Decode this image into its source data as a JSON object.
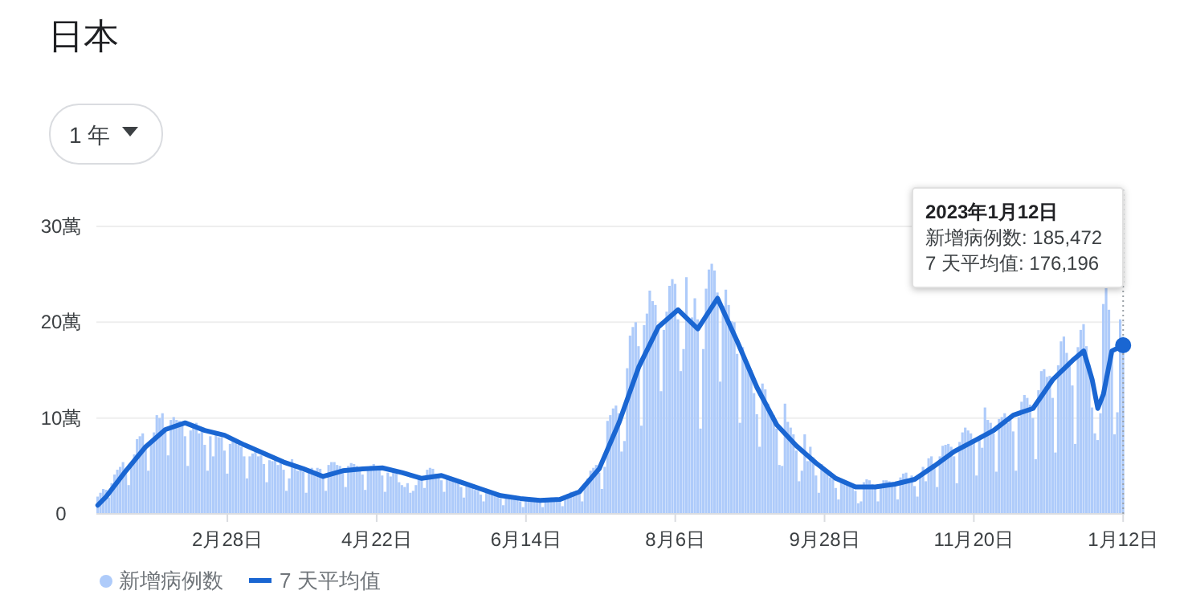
{
  "chart_data": {
    "type": "bar",
    "title": "日本",
    "annotations": [
      "1 年",
      "2023年1月12日",
      "新增病例数: 185,472",
      "7 天平均值: 176,196"
    ],
    "x": [
      "2022-01-13",
      "2022-01-14",
      "2022-01-15",
      "2022-01-16",
      "2022-01-17",
      "2022-01-18",
      "2022-01-19",
      "2022-01-20",
      "2022-01-21",
      "2022-01-22",
      "2022-01-23",
      "2022-01-24",
      "2022-01-25",
      "2022-01-26",
      "2022-01-27",
      "2022-01-28",
      "2022-01-29",
      "2022-01-30",
      "2022-01-31",
      "2022-02-01",
      "2022-02-02",
      "2022-02-03",
      "2022-02-04",
      "2022-02-05",
      "2022-02-06",
      "2022-02-07",
      "2022-02-08",
      "2022-02-09",
      "2022-02-10",
      "2022-02-11",
      "2022-02-12",
      "2022-02-13",
      "2022-02-14",
      "2022-02-15",
      "2022-02-16",
      "2022-02-17",
      "2022-02-18",
      "2022-02-19",
      "2022-02-20",
      "2022-02-21",
      "2022-02-22",
      "2022-02-23",
      "2022-02-24",
      "2022-02-25",
      "2022-02-26",
      "2022-02-27",
      "2022-02-28",
      "2022-03-01",
      "2022-03-02",
      "2022-03-03",
      "2022-03-04",
      "2022-03-05",
      "2022-03-06",
      "2022-03-07",
      "2022-03-08",
      "2022-03-09",
      "2022-03-10",
      "2022-03-11",
      "2022-03-12",
      "2022-03-13",
      "2022-03-14",
      "2022-03-15",
      "2022-03-16",
      "2022-03-17",
      "2022-03-18",
      "2022-03-19",
      "2022-03-20",
      "2022-03-21",
      "2022-03-22",
      "2022-03-23",
      "2022-03-24",
      "2022-03-25",
      "2022-03-26",
      "2022-03-27",
      "2022-03-28",
      "2022-03-29",
      "2022-03-30",
      "2022-03-31",
      "2022-04-01",
      "2022-04-02",
      "2022-04-03",
      "2022-04-04",
      "2022-04-05",
      "2022-04-06",
      "2022-04-07",
      "2022-04-08",
      "2022-04-09",
      "2022-04-10",
      "2022-04-11",
      "2022-04-12",
      "2022-04-13",
      "2022-04-14",
      "2022-04-15",
      "2022-04-16",
      "2022-04-17",
      "2022-04-18",
      "2022-04-19",
      "2022-04-20",
      "2022-04-21",
      "2022-04-22",
      "2022-04-23",
      "2022-04-24",
      "2022-04-25",
      "2022-04-26",
      "2022-04-27",
      "2022-04-28",
      "2022-04-29",
      "2022-04-30",
      "2022-05-01",
      "2022-05-02",
      "2022-05-03",
      "2022-05-04",
      "2022-05-05",
      "2022-05-06",
      "2022-05-07",
      "2022-05-08",
      "2022-05-09",
      "2022-05-10",
      "2022-05-11",
      "2022-05-12",
      "2022-05-13",
      "2022-05-14",
      "2022-05-15",
      "2022-05-16",
      "2022-05-17",
      "2022-05-18",
      "2022-05-19",
      "2022-05-20",
      "2022-05-21",
      "2022-05-22",
      "2022-05-23",
      "2022-05-24",
      "2022-05-25",
      "2022-05-26",
      "2022-05-27",
      "2022-05-28",
      "2022-05-29",
      "2022-05-30",
      "2022-05-31",
      "2022-06-01",
      "2022-06-02",
      "2022-06-03",
      "2022-06-04",
      "2022-06-05",
      "2022-06-06",
      "2022-06-07",
      "2022-06-08",
      "2022-06-09",
      "2022-06-10",
      "2022-06-11",
      "2022-06-12",
      "2022-06-13",
      "2022-06-14",
      "2022-06-15",
      "2022-06-16",
      "2022-06-17",
      "2022-06-18",
      "2022-06-19",
      "2022-06-20",
      "2022-06-21",
      "2022-06-22",
      "2022-06-23",
      "2022-06-24",
      "2022-06-25",
      "2022-06-26",
      "2022-06-27",
      "2022-06-28",
      "2022-06-29",
      "2022-06-30",
      "2022-07-01",
      "2022-07-02",
      "2022-07-03",
      "2022-07-04",
      "2022-07-05",
      "2022-07-06",
      "2022-07-07",
      "2022-07-08",
      "2022-07-09",
      "2022-07-10",
      "2022-07-11",
      "2022-07-12",
      "2022-07-13",
      "2022-07-14",
      "2022-07-15",
      "2022-07-16",
      "2022-07-17",
      "2022-07-18",
      "2022-07-19",
      "2022-07-20",
      "2022-07-21",
      "2022-07-22",
      "2022-07-23",
      "2022-07-24",
      "2022-07-25",
      "2022-07-26",
      "2022-07-27",
      "2022-07-28",
      "2022-07-29",
      "2022-07-30",
      "2022-07-31",
      "2022-08-01",
      "2022-08-02",
      "2022-08-03",
      "2022-08-04",
      "2022-08-05",
      "2022-08-06",
      "2022-08-07",
      "2022-08-08",
      "2022-08-09",
      "2022-08-10",
      "2022-08-11",
      "2022-08-12",
      "2022-08-13",
      "2022-08-14",
      "2022-08-15",
      "2022-08-16",
      "2022-08-17",
      "2022-08-18",
      "2022-08-19",
      "2022-08-20",
      "2022-08-21",
      "2022-08-22",
      "2022-08-23",
      "2022-08-24",
      "2022-08-25",
      "2022-08-26",
      "2022-08-27",
      "2022-08-28",
      "2022-08-29",
      "2022-08-30",
      "2022-08-31",
      "2022-09-01",
      "2022-09-02",
      "2022-09-03",
      "2022-09-04",
      "2022-09-05",
      "2022-09-06",
      "2022-09-07",
      "2022-09-08",
      "2022-09-09",
      "2022-09-10",
      "2022-09-11",
      "2022-09-12",
      "2022-09-13",
      "2022-09-14",
      "2022-09-15",
      "2022-09-16",
      "2022-09-17",
      "2022-09-18",
      "2022-09-19",
      "2022-09-20",
      "2022-09-21",
      "2022-09-22",
      "2022-09-23",
      "2022-09-24",
      "2022-09-25",
      "2022-09-26",
      "2022-09-27",
      "2022-09-28",
      "2022-09-29",
      "2022-09-30",
      "2022-10-01",
      "2022-10-02",
      "2022-10-03",
      "2022-10-04",
      "2022-10-05",
      "2022-10-06",
      "2022-10-07",
      "2022-10-08",
      "2022-10-09",
      "2022-10-10",
      "2022-10-11",
      "2022-10-12",
      "2022-10-13",
      "2022-10-14",
      "2022-10-15",
      "2022-10-16",
      "2022-10-17",
      "2022-10-18",
      "2022-10-19",
      "2022-10-20",
      "2022-10-21",
      "2022-10-22",
      "2022-10-23",
      "2022-10-24",
      "2022-10-25",
      "2022-10-26",
      "2022-10-27",
      "2022-10-28",
      "2022-10-29",
      "2022-10-30",
      "2022-10-31",
      "2022-11-01",
      "2022-11-02",
      "2022-11-03",
      "2022-11-04",
      "2022-11-05",
      "2022-11-06",
      "2022-11-07",
      "2022-11-08",
      "2022-11-09",
      "2022-11-10",
      "2022-11-11",
      "2022-11-12",
      "2022-11-13",
      "2022-11-14",
      "2022-11-15",
      "2022-11-16",
      "2022-11-17",
      "2022-11-18",
      "2022-11-19",
      "2022-11-20",
      "2022-11-21",
      "2022-11-22",
      "2022-11-23",
      "2022-11-24",
      "2022-11-25",
      "2022-11-26",
      "2022-11-27",
      "2022-11-28",
      "2022-11-29",
      "2022-11-30",
      "2022-12-01",
      "2022-12-02",
      "2022-12-03",
      "2022-12-04",
      "2022-12-05",
      "2022-12-06",
      "2022-12-07",
      "2022-12-08",
      "2022-12-09",
      "2022-12-10",
      "2022-12-11",
      "2022-12-12",
      "2022-12-13",
      "2022-12-14",
      "2022-12-15",
      "2022-12-16",
      "2022-12-17",
      "2022-12-18",
      "2022-12-19",
      "2022-12-20",
      "2022-12-21",
      "2022-12-22",
      "2022-12-23",
      "2022-12-24",
      "2022-12-25",
      "2022-12-26",
      "2022-12-27",
      "2022-12-28",
      "2022-12-29",
      "2022-12-30",
      "2022-12-31",
      "2023-01-01",
      "2023-01-02",
      "2023-01-03",
      "2023-01-04",
      "2023-01-05",
      "2023-01-06",
      "2023-01-07",
      "2023-01-08",
      "2023-01-09",
      "2023-01-10",
      "2023-01-11",
      "2023-01-12"
    ],
    "series": [
      {
        "name": "新增病例数",
        "color": "#aecbfa",
        "values": [
          1.8,
          2.2,
          2.6,
          2.5,
          1.7,
          3.2,
          4.1,
          4.6,
          4.9,
          5.4,
          4.7,
          3.0,
          5.0,
          6.2,
          7.8,
          8.1,
          8.4,
          7.1,
          4.5,
          7.4,
          8.5,
          10.3,
          10.0,
          10.5,
          8.8,
          6.1,
          9.8,
          10.1,
          9.8,
          9.7,
          9.5,
          8.1,
          5.0,
          8.7,
          9.3,
          9.5,
          8.4,
          8.9,
          7.2,
          4.5,
          8.1,
          6.0,
          8.4,
          8.0,
          8.0,
          6.6,
          4.2,
          7.3,
          7.8,
          7.6,
          7.2,
          7.0,
          6.0,
          3.7,
          6.0,
          6.3,
          6.5,
          6.0,
          6.1,
          5.2,
          3.3,
          5.6,
          5.5,
          5.6,
          5.1,
          5.4,
          4.6,
          2.4,
          3.7,
          5.7,
          4.8,
          4.5,
          4.8,
          4.4,
          2.2,
          4.6,
          4.8,
          4.5,
          4.8,
          4.7,
          4.1,
          2.4,
          5.1,
          5.4,
          5.4,
          5.1,
          5.0,
          4.4,
          2.8,
          5.0,
          5.3,
          5.2,
          5.0,
          4.7,
          4.1,
          2.5,
          4.8,
          5.0,
          5.2,
          4.8,
          4.6,
          4.0,
          2.3,
          4.3,
          3.9,
          4.4,
          4.2,
          3.3,
          3.0,
          2.8,
          3.2,
          2.2,
          2.4,
          3.0,
          3.9,
          3.6,
          2.7,
          4.6,
          4.8,
          4.7,
          4.2,
          4.0,
          3.5,
          2.3,
          3.8,
          3.7,
          3.6,
          3.4,
          3.2,
          2.8,
          1.7,
          3.0,
          2.9,
          2.7,
          2.5,
          2.4,
          2.0,
          1.3,
          2.4,
          2.3,
          2.1,
          2.0,
          1.9,
          1.6,
          0.9,
          1.9,
          1.8,
          1.8,
          1.6,
          1.6,
          1.3,
          0.7,
          1.6,
          1.6,
          1.6,
          1.5,
          1.5,
          1.3,
          0.7,
          1.4,
          1.5,
          1.7,
          1.6,
          1.7,
          1.5,
          0.8,
          1.8,
          2.1,
          2.3,
          2.3,
          2.4,
          2.1,
          1.3,
          2.8,
          3.7,
          4.5,
          4.8,
          5.1,
          4.3,
          2.6,
          4.9,
          9.7,
          10.3,
          11.0,
          11.3,
          10.5,
          6.5,
          7.6,
          15.2,
          18.6,
          19.5,
          20.0,
          17.5,
          9.2,
          19.7,
          20.9,
          23.3,
          22.2,
          21.8,
          19.4,
          12.8,
          19.2,
          21.1,
          23.8,
          24.5,
          24.0,
          20.3,
          14.9,
          17.2,
          24.7,
          20.0,
          20.5,
          22.5,
          20.3,
          8.9,
          17.2,
          23.5,
          25.5,
          26.1,
          25.4,
          23.1,
          13.8,
          21.7,
          23.4,
          21.8,
          20.1,
          20.0,
          16.7,
          9.5,
          17.4,
          15.7,
          15.6,
          15.0,
          12.6,
          10.4,
          7.0,
          13.6,
          13.0,
          11.5,
          10.5,
          10.3,
          8.9,
          5.1,
          5.0,
          11.5,
          9.6,
          9.0,
          8.3,
          6.6,
          3.4,
          4.5,
          8.3,
          5.5,
          7.0,
          5.9,
          4.0,
          2.2,
          5.2,
          4.7,
          4.4,
          3.8,
          3.6,
          2.7,
          1.5,
          3.4,
          3.4,
          3.2,
          3.1,
          2.9,
          2.4,
          1.1,
          1.3,
          3.3,
          3.6,
          3.5,
          3.1,
          2.6,
          1.3,
          3.0,
          3.5,
          3.5,
          3.4,
          3.2,
          2.9,
          1.5,
          3.8,
          4.2,
          4.3,
          3.5,
          4.0,
          2.9,
          1.8,
          3.9,
          4.9,
          3.4,
          5.8,
          6.0,
          4.8,
          2.8,
          6.0,
          7.1,
          7.2,
          7.3,
          7.0,
          6.0,
          3.2,
          7.5,
          8.5,
          9.0,
          8.7,
          8.4,
          7.5,
          4.0,
          7.9,
          6.9,
          11.1,
          9.8,
          9.5,
          8.4,
          4.4,
          9.9,
          10.1,
          10.5,
          9.5,
          9.8,
          8.6,
          4.5,
          10.1,
          11.7,
          12.4,
          12.1,
          11.4,
          10.0,
          5.7,
          12.9,
          14.9,
          15.1,
          14.3,
          14.4,
          12.1,
          6.4,
          15.5,
          18.0,
          18.5,
          16.8,
          15.8,
          13.4,
          7.3,
          17.4,
          19.2,
          19.8,
          17.5,
          15.6,
          11.1,
          8.4,
          7.7,
          10.5,
          21.9,
          23.6,
          21.3,
          17.0,
          8.3,
          10.6,
          20.3,
          18.5
        ]
      },
      {
        "name": "7 天平均值",
        "type": "line",
        "color": "#1a66d2",
        "x": [
          "2022-01-13",
          "2022-01-16",
          "2022-01-23",
          "2022-01-30",
          "2022-02-06",
          "2022-02-13",
          "2022-02-20",
          "2022-02-27",
          "2022-03-06",
          "2022-03-13",
          "2022-03-20",
          "2022-03-27",
          "2022-04-03",
          "2022-04-10",
          "2022-04-17",
          "2022-04-24",
          "2022-05-01",
          "2022-05-08",
          "2022-05-15",
          "2022-05-22",
          "2022-05-29",
          "2022-06-05",
          "2022-06-12",
          "2022-06-19",
          "2022-06-26",
          "2022-07-03",
          "2022-07-10",
          "2022-07-17",
          "2022-07-24",
          "2022-07-31",
          "2022-08-07",
          "2022-08-14",
          "2022-08-21",
          "2022-08-28",
          "2022-09-04",
          "2022-09-11",
          "2022-09-18",
          "2022-09-25",
          "2022-10-02",
          "2022-10-09",
          "2022-10-16",
          "2022-10-23",
          "2022-10-30",
          "2022-11-06",
          "2022-11-13",
          "2022-11-20",
          "2022-11-27",
          "2022-12-04",
          "2022-12-11",
          "2022-12-18",
          "2022-12-25",
          "2022-12-29",
          "2023-01-01",
          "2023-01-03",
          "2023-01-05",
          "2023-01-08",
          "2023-01-10",
          "2023-01-12"
        ],
        "values": [
          0.9,
          1.8,
          4.5,
          7.0,
          8.8,
          9.5,
          8.7,
          8.2,
          7.2,
          6.3,
          5.4,
          4.7,
          3.9,
          4.5,
          4.7,
          4.8,
          4.3,
          3.7,
          4.0,
          3.3,
          2.6,
          1.9,
          1.6,
          1.4,
          1.5,
          2.3,
          4.7,
          9.5,
          15.3,
          19.5,
          21.3,
          19.3,
          22.5,
          18.0,
          13.2,
          9.3,
          7.1,
          5.3,
          3.7,
          2.8,
          2.8,
          3.1,
          3.6,
          5.0,
          6.5,
          7.6,
          8.7,
          10.3,
          11.0,
          14.0,
          16.0,
          17.0,
          14.0,
          11.0,
          12.5,
          17.0,
          17.3,
          17.6
        ]
      }
    ],
    "xlim": [
      "2022-01-13",
      "2023-01-12"
    ],
    "xticks": [
      {
        "value": "2022-02-28",
        "label": "2月28日"
      },
      {
        "value": "2022-04-22",
        "label": "4月22日"
      },
      {
        "value": "2022-06-14",
        "label": "6月14日"
      },
      {
        "value": "2022-08-06",
        "label": "8月6日"
      },
      {
        "value": "2022-09-28",
        "label": "9月28日"
      },
      {
        "value": "2022-11-20",
        "label": "11月20日"
      },
      {
        "value": "2023-01-12",
        "label": "1月12日"
      }
    ],
    "ylim": [
      0,
      30
    ],
    "yticks": [
      0,
      {
        "value": 10,
        "label": "10萬"
      },
      {
        "value": 20,
        "label": "20萬"
      },
      {
        "value": 30,
        "label": "30萬"
      }
    ],
    "grid": "y",
    "legend": "bottom",
    "marker": "none",
    "line_style": "solid"
  }
}
